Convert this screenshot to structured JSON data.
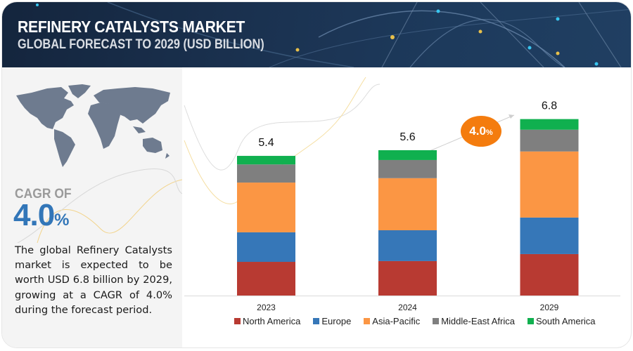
{
  "header": {
    "title": "REFINERY CATALYSTS MARKET",
    "subtitle": "GLOBAL FORECAST TO 2029 (USD BILLION)"
  },
  "left_panel": {
    "map_icon": "world-map-icon",
    "cagr_label": "CAGR OF",
    "cagr_number": "4.0",
    "cagr_percent": "%",
    "description": "The global Refinery Catalysts market is expected to be worth USD 6.8 billion by 2029, growing at a CAGR of 4.0% during the forecast period."
  },
  "growth_badge": {
    "number": "4.0",
    "percent": "%"
  },
  "chart_data": {
    "type": "bar",
    "stacked": true,
    "title": "REFINERY CATALYSTS MARKET",
    "subtitle": "GLOBAL FORECAST TO 2029 (USD BILLION)",
    "xlabel": "",
    "ylabel": "",
    "ylim": [
      0,
      6.8
    ],
    "grid": false,
    "legend_position": "bottom",
    "categories": [
      "2023",
      "2024",
      "2029"
    ],
    "totals": [
      "5.4",
      "5.6",
      "6.8"
    ],
    "series": [
      {
        "name": "North America",
        "color": "#b83a32",
        "values": [
          1.3,
          1.33,
          1.6
        ]
      },
      {
        "name": "Europe",
        "color": "#3677b8",
        "values": [
          1.14,
          1.19,
          1.41
        ]
      },
      {
        "name": "Asia-Pacific",
        "color": "#fb9644",
        "values": [
          1.92,
          2.01,
          2.55
        ]
      },
      {
        "name": "Middle-East Africa",
        "color": "#7f7f7f",
        "values": [
          0.7,
          0.7,
          0.84
        ]
      },
      {
        "name": "South America",
        "color": "#10b04f",
        "values": [
          0.33,
          0.38,
          0.41
        ]
      }
    ],
    "annotation": "4.0%"
  }
}
